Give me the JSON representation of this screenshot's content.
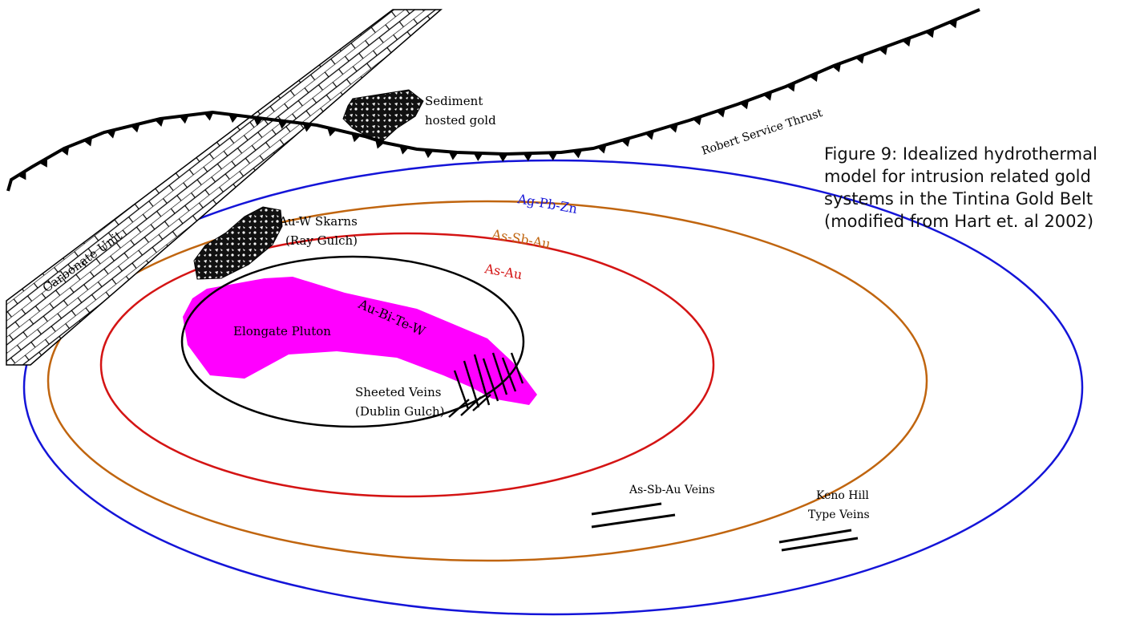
{
  "caption": {
    "lines": [
      "Figure 9: Idealized hydrothermal",
      "model for intrusion related gold",
      "systems in the Tintina Gold Belt",
      "(modified from Hart et. al 2002)"
    ]
  },
  "zones": {
    "outer": {
      "label": "Ag-Pb-Zn",
      "color": "#1414d8"
    },
    "middle": {
      "label": "As-Sb-Au",
      "color": "#c0650f"
    },
    "inner": {
      "label": "As-Au",
      "color": "#d41414"
    },
    "core": {
      "label": "Au-Bi-Te-W",
      "color": "#000000"
    }
  },
  "features": {
    "thrust": "Robert Service Thrust",
    "carbonate": "Carbonate Unit",
    "sediment_gold_1": "Sediment",
    "sediment_gold_2": "hosted gold",
    "skarns_1": "Au-W Skarns",
    "skarns_2": "(Ray Gulch)",
    "pluton": "Elongate Pluton",
    "sheeted_1": "Sheeted Veins",
    "sheeted_2": "(Dublin Gulch)",
    "assbau_veins": "As-Sb-Au Veins",
    "keno_1": "Keno Hill",
    "keno_2": "Type Veins"
  },
  "colors": {
    "pluton": "#ff00ff",
    "line": "#000000",
    "background": "#ffffff"
  }
}
